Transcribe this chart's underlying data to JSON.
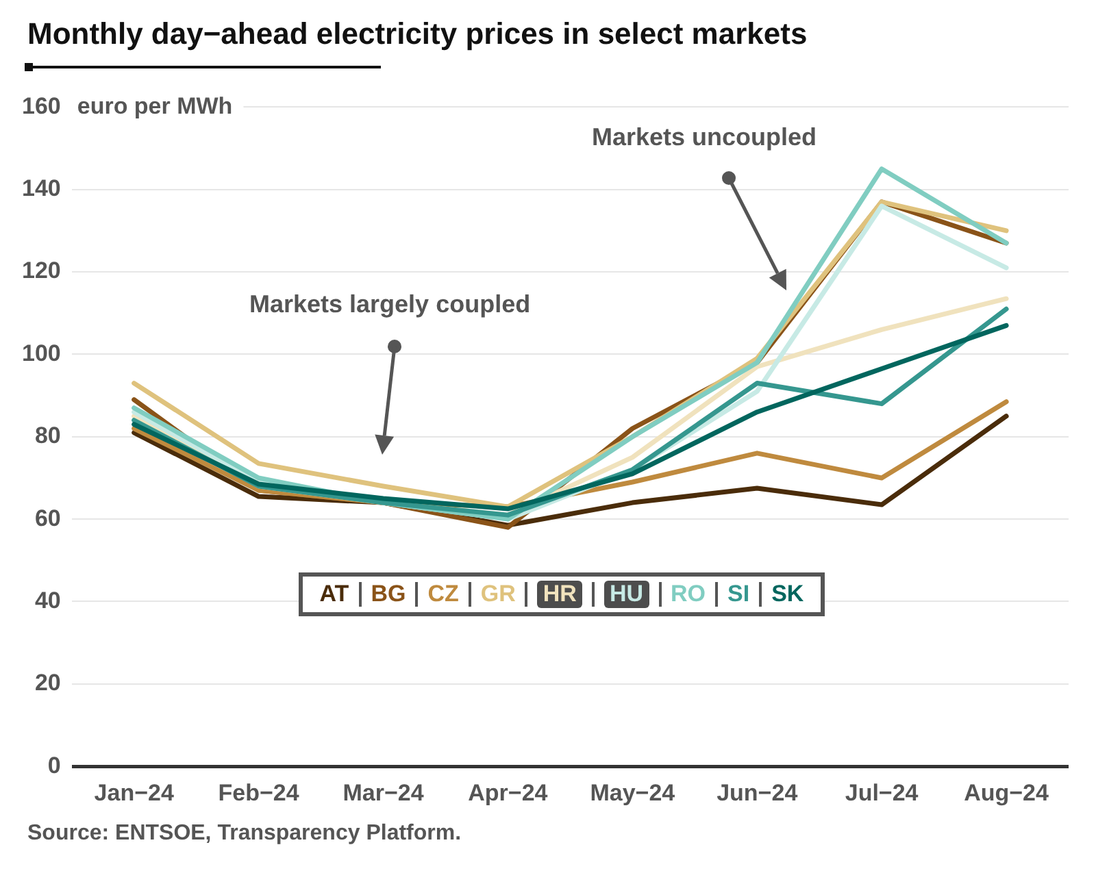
{
  "chart_data": {
    "type": "line",
    "title": "Monthly day−ahead electricity prices in select markets",
    "ylabel": "euro per MWh",
    "categories": [
      "Jan−24",
      "Feb−24",
      "Mar−24",
      "Apr−24",
      "May−24",
      "Jun−24",
      "Jul−24",
      "Aug−24"
    ],
    "series": [
      {
        "name": "AT",
        "color": "#4a2c0a",
        "values": [
          81,
          65.5,
          64,
          58.5,
          64,
          67.5,
          63.5,
          85
        ]
      },
      {
        "name": "BG",
        "color": "#8a5318",
        "values": [
          89,
          67,
          64,
          58,
          82,
          98,
          137,
          127
        ]
      },
      {
        "name": "CZ",
        "color": "#bf8a3e",
        "values": [
          82,
          67,
          64,
          63,
          69,
          76,
          70,
          88.5
        ]
      },
      {
        "name": "GR",
        "color": "#dfc27d",
        "values": [
          93,
          73.5,
          68,
          63,
          80,
          99,
          137,
          130
        ]
      },
      {
        "name": "HR",
        "color": "#f0e2bd",
        "values": [
          85,
          68,
          64,
          61,
          75,
          97,
          106,
          113.5
        ]
      },
      {
        "name": "HU",
        "color": "#c7eae5",
        "values": [
          86,
          69,
          64,
          60,
          72,
          91,
          136,
          121
        ]
      },
      {
        "name": "RO",
        "color": "#80cdc1",
        "values": [
          87,
          70,
          64,
          60,
          80,
          98,
          145,
          127
        ]
      },
      {
        "name": "SI",
        "color": "#35978f",
        "values": [
          84,
          68,
          64,
          61,
          72,
          93,
          88,
          111
        ]
      },
      {
        "name": "SK",
        "color": "#01665e",
        "values": [
          83,
          68.5,
          65,
          62.5,
          71,
          86,
          96.5,
          107
        ]
      }
    ],
    "ylim": [
      0,
      160
    ],
    "yticks": [
      0,
      20,
      40,
      60,
      80,
      100,
      120,
      140,
      160
    ],
    "grid": "y",
    "legend": "center",
    "marker": "none",
    "line_style": "solid",
    "annotations": [
      "Markets largely coupled",
      "Markets uncoupled",
      "Source: ENTSOE, Transparency Platform."
    ]
  }
}
